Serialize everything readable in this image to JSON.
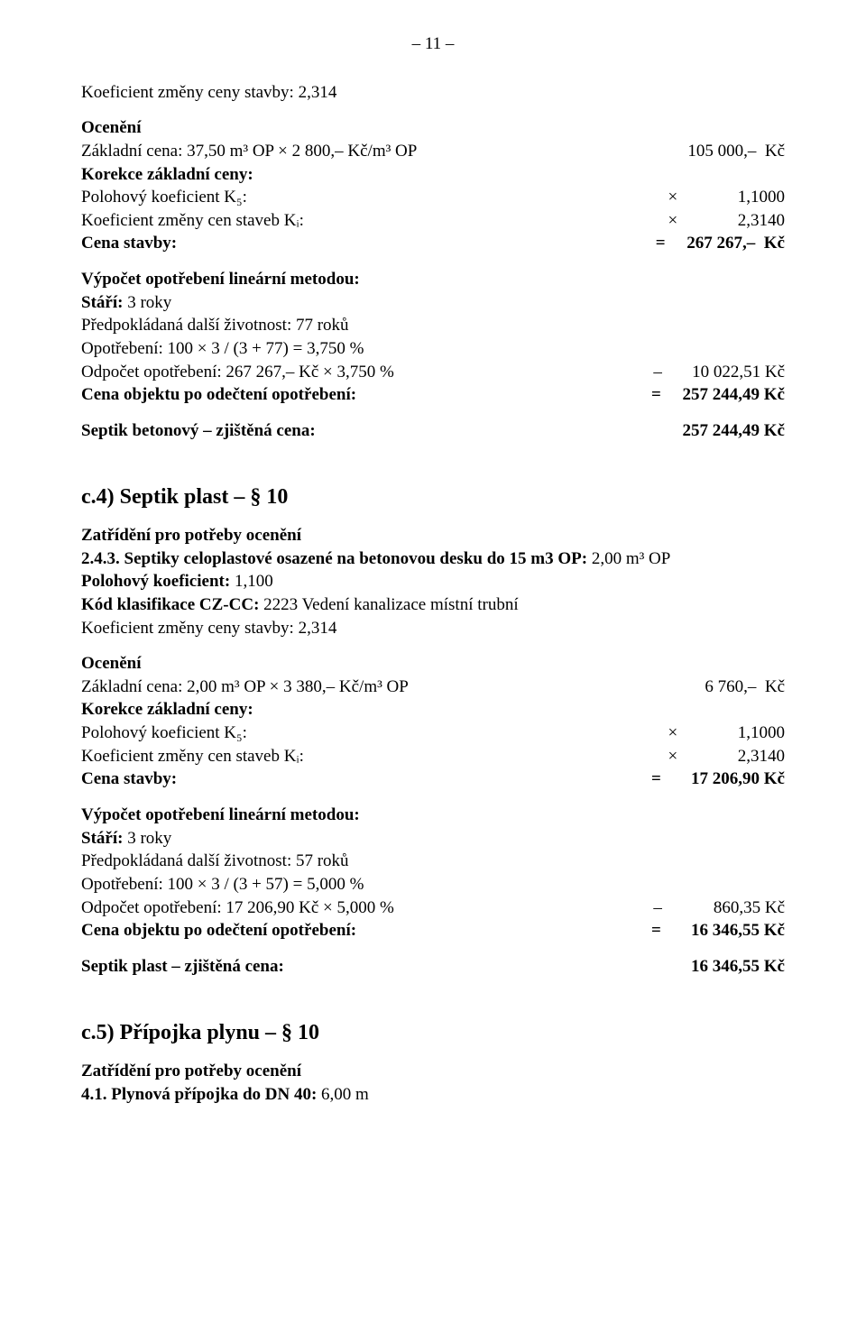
{
  "page": {
    "number_display": "– 11 –"
  },
  "block1": {
    "coeff_line": "Koeficient změny ceny stavby: 2,314",
    "heading": "Ocenění",
    "row_base": {
      "left": "Základní cena: 37,50 m³ OP × 2 800,–  Kč/m³ OP",
      "right": "105 000,–  Kč"
    },
    "row_corr_heading": "Korekce základní ceny:",
    "row_poloh": {
      "left": "Polohový koeficient K₅:",
      "right": "×              1,1000"
    },
    "row_kzm": {
      "left": "Koeficient změny cen staveb Kᵢ:",
      "right": "×              2,3140"
    },
    "row_cena": {
      "left": "Cena stavby:",
      "right": "=     267 267,–  Kč"
    },
    "wear_heading": "Výpočet opotřebení lineární metodou:",
    "wear_l1": "Stáří: 3 roky",
    "wear_l2": "Předpokládaná další životnost: 77 roků",
    "wear_l3": "Opotřebení: 100 × 3 / (3 + 77) = 3,750 %",
    "row_odp": {
      "left": "Odpočet opotřebení: 267 267,–  Kč × 3,750 %",
      "right": "–       10 022,51 Kč"
    },
    "row_obj": {
      "left": "Cena objektu po odečtení opotřebení:",
      "right": "=     257 244,49 Kč"
    },
    "row_final": {
      "left": "Septik betonový – zjištěná cena:",
      "right": "257 244,49 Kč"
    }
  },
  "block2": {
    "heading": "c.4)  Septik plast – § 10",
    "classify_heading": "Zatřídění pro potřeby ocenění",
    "l1": "2.4.3. Septiky celoplastové osazené na betonovou desku do 15 m3 OP: 2,00 m³ OP",
    "l2": "Polohový koeficient: 1,100",
    "l3": "Kód klasifikace CZ-CC: 2223 Vedení kanalizace místní trubní",
    "l4": "Koeficient změny ceny stavby: 2,314",
    "oceneni_heading": "Ocenění",
    "row_base": {
      "left": "Základní cena: 2,00 m³ OP × 3 380,–  Kč/m³ OP",
      "right": "6 760,–  Kč"
    },
    "row_corr_heading": "Korekce základní ceny:",
    "row_poloh": {
      "left": "Polohový koeficient K₅:",
      "right": "×              1,1000"
    },
    "row_kzm": {
      "left": "Koeficient změny cen staveb Kᵢ:",
      "right": "×              2,3140"
    },
    "row_cena": {
      "left": "Cena stavby:",
      "right": "=       17 206,90 Kč"
    },
    "wear_heading": "Výpočet opotřebení lineární metodou:",
    "wear_l1": "Stáří: 3 roky",
    "wear_l2": "Předpokládaná další životnost: 57 roků",
    "wear_l3": "Opotřebení: 100 × 3 / (3 + 57) = 5,000 %",
    "row_odp": {
      "left": "Odpočet opotřebení: 17 206,90 Kč × 5,000 %",
      "right": "–            860,35 Kč"
    },
    "row_obj": {
      "left": "Cena objektu po odečtení opotřebení:",
      "right": "=       16 346,55 Kč"
    },
    "row_final": {
      "left": "Septik plast – zjištěná cena:",
      "right": "16 346,55 Kč"
    }
  },
  "block3": {
    "heading": "c.5)  Přípojka plynu – § 10",
    "classify_heading": "Zatřídění pro potřeby ocenění",
    "l1": "4.1. Plynová přípojka do DN 40: 6,00 m"
  }
}
